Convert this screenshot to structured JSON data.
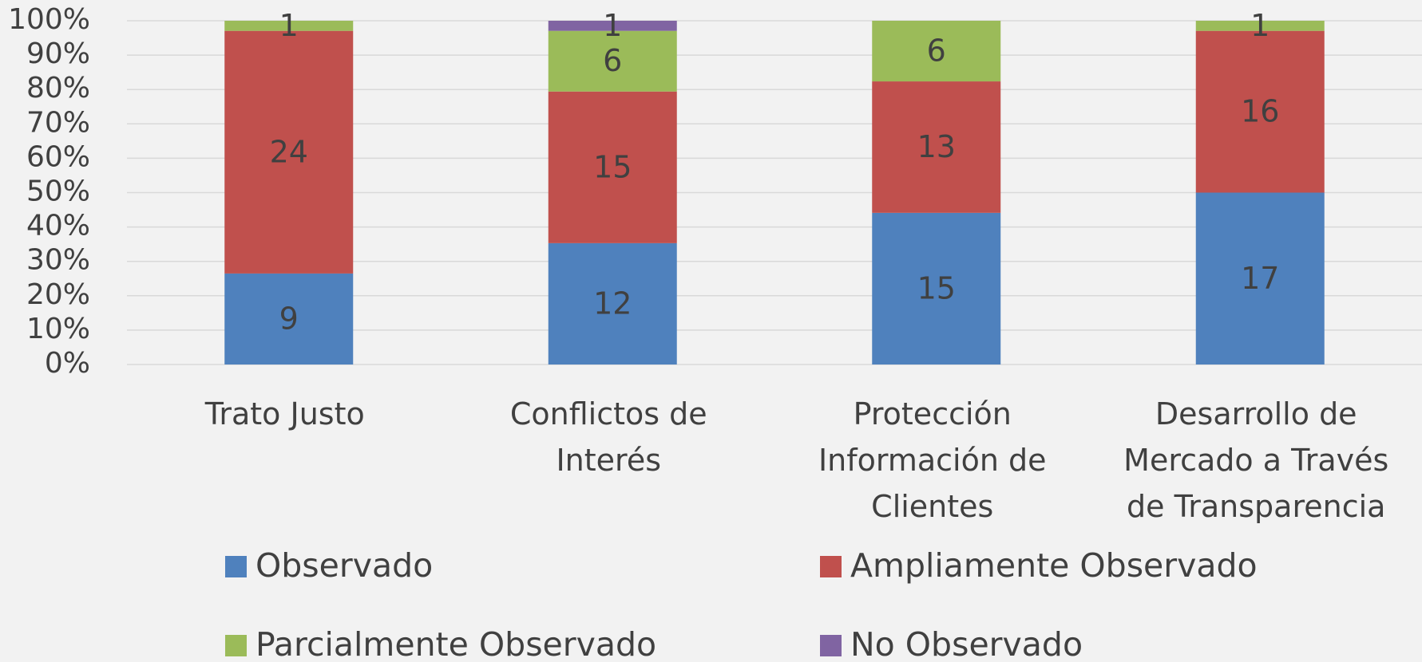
{
  "chart_data": {
    "type": "bar",
    "stacking": "percent",
    "categories": [
      "Trato Justo",
      "Conflictos de Interés",
      "Protección Información de Clientes",
      "Desarrollo de Mercado a Través de Transparencia"
    ],
    "series": [
      {
        "name": "Observado",
        "color": "#4f81bd",
        "values": [
          9,
          12,
          15,
          17
        ]
      },
      {
        "name": "Ampliamente Observado",
        "color": "#c0504d",
        "values": [
          24,
          15,
          13,
          16
        ]
      },
      {
        "name": "Parcialmente Observado",
        "color": "#9bbb59",
        "values": [
          1,
          6,
          6,
          1
        ]
      },
      {
        "name": "No Observado",
        "color": "#8064a2",
        "values": [
          0,
          1,
          0,
          0
        ]
      }
    ],
    "ylim": [
      0,
      100
    ],
    "yticks": [
      {
        "value": 0,
        "label": "0%"
      },
      {
        "value": 10,
        "label": "10%"
      },
      {
        "value": 20,
        "label": "20%"
      },
      {
        "value": 30,
        "label": "30%"
      },
      {
        "value": 40,
        "label": "40%"
      },
      {
        "value": 50,
        "label": "50%"
      },
      {
        "value": 60,
        "label": "60%"
      },
      {
        "value": 70,
        "label": "70%"
      },
      {
        "value": 80,
        "label": "80%"
      },
      {
        "value": 90,
        "label": "90%"
      },
      {
        "value": 100,
        "label": "100%"
      }
    ],
    "grid": true,
    "legend": "bottom"
  }
}
